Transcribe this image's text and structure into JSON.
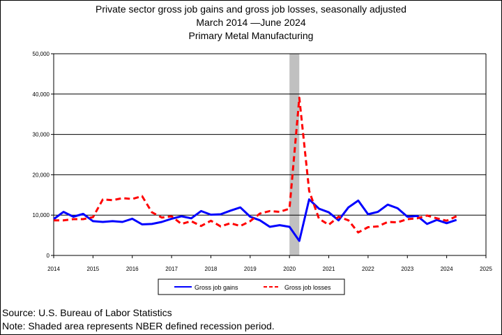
{
  "titles": {
    "line1": "Private sector gross job gains and gross job losses, seasonally adjusted",
    "line2": "March 2014 —June 2024",
    "line3": "Primary Metal Manufacturing"
  },
  "chart_data": {
    "type": "line",
    "title": "Private sector gross job gains and gross job losses, seasonally adjusted",
    "xlim": [
      2014,
      2025
    ],
    "ylim": [
      0,
      50000
    ],
    "x_ticks": [
      "2014",
      "2015",
      "2016",
      "2017",
      "2018",
      "2019",
      "2020",
      "2021",
      "2022",
      "2023",
      "2024",
      "2025"
    ],
    "y_ticks": [
      "0",
      "10,000",
      "20,000",
      "30,000",
      "40,000",
      "50,000"
    ],
    "y_tick_values": [
      0,
      10000,
      20000,
      30000,
      40000,
      50000
    ],
    "grid": "horizontal",
    "legend_position": "bottom",
    "recession": {
      "start": 2020.0,
      "end": 2020.25,
      "color": "#c0c0c0"
    },
    "series": [
      {
        "name": "Gross job gains",
        "color": "#0000ff",
        "style": "solid",
        "x": [
          2014.0,
          2014.25,
          2014.5,
          2014.75,
          2015.0,
          2015.25,
          2015.5,
          2015.75,
          2016.0,
          2016.25,
          2016.5,
          2016.75,
          2017.0,
          2017.25,
          2017.5,
          2017.75,
          2018.0,
          2018.25,
          2018.5,
          2018.75,
          2019.0,
          2019.25,
          2019.5,
          2019.75,
          2020.0,
          2020.25,
          2020.5,
          2020.75,
          2021.0,
          2021.25,
          2021.5,
          2021.75,
          2022.0,
          2022.25,
          2022.5,
          2022.75,
          2023.0,
          2023.25,
          2023.5,
          2023.75,
          2024.0,
          2024.25
        ],
        "values": [
          9000,
          10800,
          9600,
          10300,
          8500,
          8300,
          8500,
          8300,
          9100,
          7700,
          7800,
          8300,
          9100,
          9700,
          9200,
          11000,
          10100,
          10200,
          11100,
          11900,
          9600,
          8700,
          7100,
          7500,
          7100,
          3600,
          13900,
          11600,
          10700,
          8700,
          11900,
          13600,
          10200,
          10800,
          12600,
          11700,
          9600,
          9800,
          7800,
          8800,
          8000,
          8800
        ]
      },
      {
        "name": "Gross job losses",
        "color": "#ff0000",
        "style": "dashed",
        "x": [
          2014.0,
          2014.25,
          2014.5,
          2014.75,
          2015.0,
          2015.25,
          2015.5,
          2015.75,
          2016.0,
          2016.25,
          2016.5,
          2016.75,
          2017.0,
          2017.25,
          2017.5,
          2017.75,
          2018.0,
          2018.25,
          2018.5,
          2018.75,
          2019.0,
          2019.25,
          2019.5,
          2019.75,
          2020.0,
          2020.25,
          2020.5,
          2020.75,
          2021.0,
          2021.25,
          2021.5,
          2021.75,
          2022.0,
          2022.25,
          2022.5,
          2022.75,
          2023.0,
          2023.25,
          2023.5,
          2023.75,
          2024.0,
          2024.25
        ],
        "values": [
          8700,
          8700,
          9000,
          9000,
          9500,
          13900,
          13700,
          14200,
          14000,
          14700,
          10700,
          9400,
          9700,
          7800,
          8500,
          7300,
          8600,
          7200,
          8000,
          7300,
          8500,
          10400,
          11000,
          10800,
          11600,
          39100,
          16000,
          9100,
          7600,
          9600,
          8700,
          5700,
          7000,
          7200,
          8300,
          8200,
          9000,
          9200,
          9900,
          9200,
          8600,
          9700
        ]
      }
    ]
  },
  "legend": {
    "gains_label": "Gross job gains",
    "losses_label": "Gross job losses"
  },
  "footer": {
    "source": "Source: U.S. Bureau of Labor Statistics",
    "note": "Note: Shaded area represents NBER defined recession period."
  }
}
